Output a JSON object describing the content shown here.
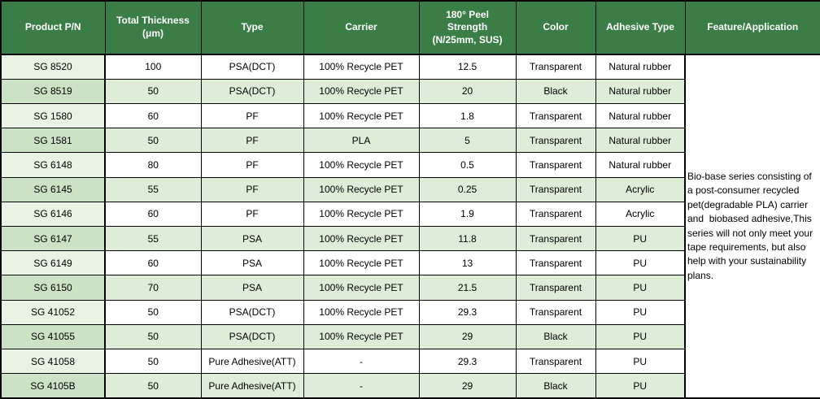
{
  "table": {
    "columns": [
      {
        "id": "pn",
        "label": "Product P/N"
      },
      {
        "id": "thickness",
        "label": "Total Thickness (μm)"
      },
      {
        "id": "type",
        "label": "Type"
      },
      {
        "id": "carrier",
        "label": "Carrier"
      },
      {
        "id": "peel",
        "label": "180° Peel Strength (N/25mm, SUS)"
      },
      {
        "id": "color",
        "label": "Color"
      },
      {
        "id": "adhesive",
        "label": "Adhesive Type"
      },
      {
        "id": "feature",
        "label": "Feature/Application"
      }
    ],
    "rows": [
      {
        "pn": "SG 8520",
        "thickness": 100,
        "type": "PSA(DCT)",
        "carrier": "100% Recycle PET",
        "peel": 12.5,
        "color": "Transparent",
        "adhesive": "Natural rubber"
      },
      {
        "pn": "SG 8519",
        "thickness": 50,
        "type": "PSA(DCT)",
        "carrier": "100% Recycle PET",
        "peel": 20,
        "color": "Black",
        "adhesive": "Natural rubber"
      },
      {
        "pn": "SG 1580",
        "thickness": 60,
        "type": "PF",
        "carrier": "100% Recycle PET",
        "peel": 1.8,
        "color": "Transparent",
        "adhesive": "Natural rubber"
      },
      {
        "pn": "SG 1581",
        "thickness": 50,
        "type": "PF",
        "carrier": "PLA",
        "peel": 5,
        "color": "Transparent",
        "adhesive": "Natural rubber"
      },
      {
        "pn": "SG 6148",
        "thickness": 80,
        "type": "PF",
        "carrier": "100% Recycle PET",
        "peel": 0.5,
        "color": "Transparent",
        "adhesive": "Natural rubber"
      },
      {
        "pn": "SG 6145",
        "thickness": 55,
        "type": "PF",
        "carrier": "100% Recycle PET",
        "peel": 0.25,
        "color": "Transparent",
        "adhesive": "Acrylic"
      },
      {
        "pn": "SG 6146",
        "thickness": 60,
        "type": "PF",
        "carrier": "100% Recycle PET",
        "peel": 1.9,
        "color": "Transparent",
        "adhesive": "Acrylic"
      },
      {
        "pn": "SG 6147",
        "thickness": 55,
        "type": "PSA",
        "carrier": "100% Recycle PET",
        "peel": 11.8,
        "color": "Transparent",
        "adhesive": "PU"
      },
      {
        "pn": "SG 6149",
        "thickness": 60,
        "type": "PSA",
        "carrier": "100% Recycle PET",
        "peel": 13,
        "color": "Transparent",
        "adhesive": "PU"
      },
      {
        "pn": "SG 6150",
        "thickness": 70,
        "type": "PSA",
        "carrier": "100% Recycle PET",
        "peel": 21.5,
        "color": "Transparent",
        "adhesive": "PU"
      },
      {
        "pn": "SG 41052",
        "thickness": 50,
        "type": "PSA(DCT)",
        "carrier": "100% Recycle PET",
        "peel": 29.3,
        "color": "Transparent",
        "adhesive": "PU"
      },
      {
        "pn": "SG 41055",
        "thickness": 50,
        "type": "PSA(DCT)",
        "carrier": "100% Recycle PET",
        "peel": 29,
        "color": "Black",
        "adhesive": "PU"
      },
      {
        "pn": "SG 41058",
        "thickness": 50,
        "type": "Pure Adhesive(ATT)",
        "carrier": "-",
        "peel": 29.3,
        "color": "Transparent",
        "adhesive": "PU"
      },
      {
        "pn": "SG 4105B",
        "thickness": 50,
        "type": "Pure Adhesive(ATT)",
        "carrier": "-",
        "peel": 29,
        "color": "Black",
        "adhesive": "PU"
      }
    ],
    "feature_text": "Bio-base series consisting of a post-consumer recycled pet(degradable PLA) carrier and  biobased adhesive,This series will not only meet your tape requirements, but also help with your sustainability plans."
  },
  "colors": {
    "header_bg": "#3B7D46",
    "header_text": "#FFFFFF",
    "row_odd_bg": "#FFFFFF",
    "row_even_bg": "#DEEDD8",
    "col1_odd_bg": "#E9F3E4",
    "col1_even_bg": "#CCE2C4",
    "border": "#000000"
  }
}
